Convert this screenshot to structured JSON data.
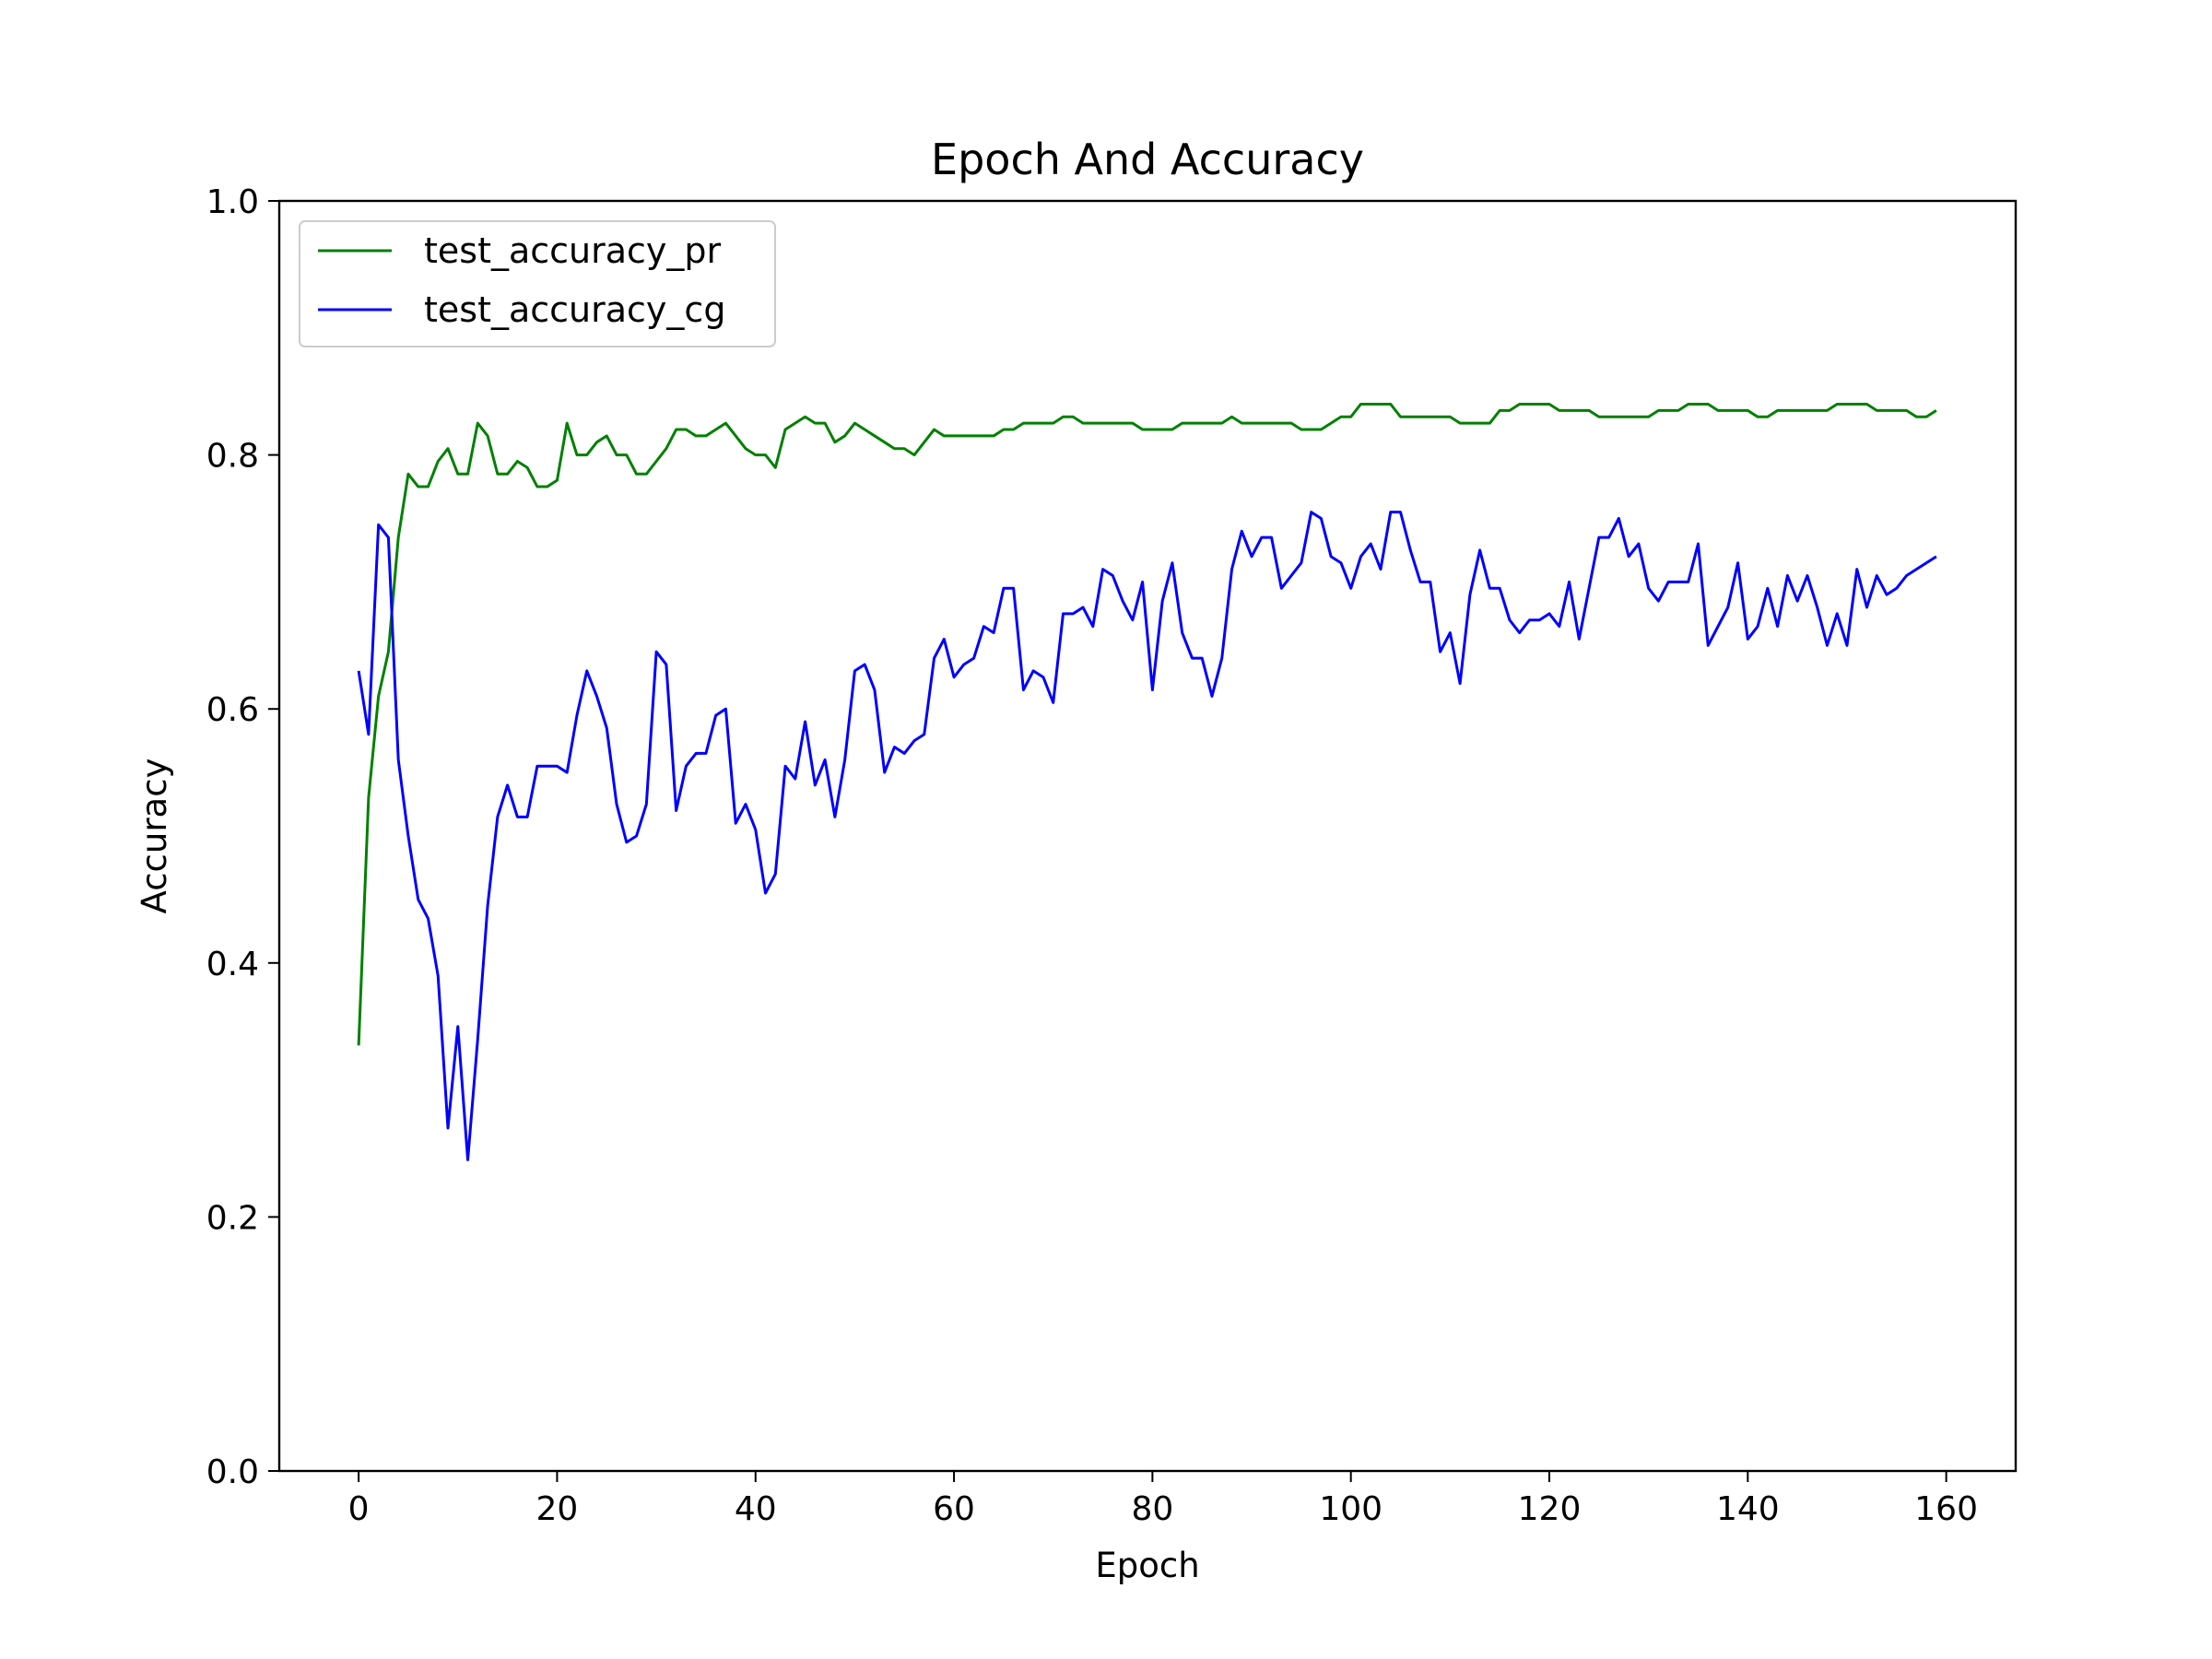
{
  "chart_data": {
    "type": "line",
    "title": "Epoch And Accuracy",
    "xlabel": "Epoch",
    "ylabel": "Accuracy",
    "xlim": [
      -8,
      167
    ],
    "ylim": [
      0.0,
      1.0
    ],
    "xticks": [
      0,
      20,
      40,
      60,
      80,
      100,
      120,
      140,
      160
    ],
    "yticks": [
      0.0,
      0.2,
      0.4,
      0.6,
      0.8,
      1.0
    ],
    "xtick_labels": [
      "0",
      "20",
      "40",
      "60",
      "80",
      "100",
      "120",
      "140",
      "160"
    ],
    "ytick_labels": [
      "0.0",
      "0.2",
      "0.4",
      "0.6",
      "0.8",
      "1.0"
    ],
    "grid": false,
    "legend_position": "top-left",
    "series": [
      {
        "name": "test_accuracy_pr",
        "color": "#008000",
        "y": [
          0.335,
          0.53,
          0.61,
          0.645,
          0.735,
          0.785,
          0.775,
          0.775,
          0.795,
          0.805,
          0.785,
          0.785,
          0.825,
          0.815,
          0.785,
          0.785,
          0.795,
          0.79,
          0.775,
          0.775,
          0.78,
          0.825,
          0.8,
          0.8,
          0.81,
          0.815,
          0.8,
          0.8,
          0.785,
          0.785,
          0.795,
          0.805,
          0.82,
          0.82,
          0.815,
          0.815,
          0.82,
          0.825,
          0.815,
          0.805,
          0.8,
          0.8,
          0.79,
          0.82,
          0.825,
          0.83,
          0.825,
          0.825,
          0.81,
          0.815,
          0.825,
          0.82,
          0.815,
          0.81,
          0.805,
          0.805,
          0.8,
          0.81,
          0.82,
          0.815,
          0.815,
          0.815,
          0.815,
          0.815,
          0.815,
          0.82,
          0.82,
          0.825,
          0.825,
          0.825,
          0.825,
          0.83,
          0.83,
          0.825,
          0.825,
          0.825,
          0.825,
          0.825,
          0.825,
          0.82,
          0.82,
          0.82,
          0.82,
          0.825,
          0.825,
          0.825,
          0.825,
          0.825,
          0.83,
          0.825,
          0.825,
          0.825,
          0.825,
          0.825,
          0.825,
          0.82,
          0.82,
          0.82,
          0.825,
          0.83,
          0.83,
          0.84,
          0.84,
          0.84,
          0.84,
          0.83,
          0.83,
          0.83,
          0.83,
          0.83,
          0.83,
          0.825,
          0.825,
          0.825,
          0.825,
          0.835,
          0.835,
          0.84,
          0.84,
          0.84,
          0.84,
          0.835,
          0.835,
          0.835,
          0.835,
          0.83,
          0.83,
          0.83,
          0.83,
          0.83,
          0.83,
          0.835,
          0.835,
          0.835,
          0.84,
          0.84,
          0.84,
          0.835,
          0.835,
          0.835,
          0.835,
          0.83,
          0.83,
          0.835,
          0.835,
          0.835,
          0.835,
          0.835,
          0.835,
          0.84,
          0.84,
          0.84,
          0.84,
          0.835,
          0.835,
          0.835,
          0.835,
          0.83,
          0.83,
          0.835
        ]
      },
      {
        "name": "test_accuracy_cg",
        "color": "#0000ff",
        "y": [
          0.63,
          0.58,
          0.745,
          0.735,
          0.56,
          0.5,
          0.45,
          0.435,
          0.39,
          0.27,
          0.35,
          0.245,
          0.34,
          0.445,
          0.515,
          0.54,
          0.515,
          0.515,
          0.555,
          0.555,
          0.555,
          0.55,
          0.595,
          0.63,
          0.61,
          0.585,
          0.525,
          0.495,
          0.5,
          0.525,
          0.645,
          0.635,
          0.52,
          0.555,
          0.565,
          0.565,
          0.595,
          0.6,
          0.51,
          0.525,
          0.505,
          0.455,
          0.47,
          0.555,
          0.545,
          0.59,
          0.54,
          0.56,
          0.515,
          0.56,
          0.63,
          0.635,
          0.615,
          0.55,
          0.57,
          0.565,
          0.575,
          0.58,
          0.64,
          0.655,
          0.625,
          0.635,
          0.64,
          0.665,
          0.66,
          0.695,
          0.695,
          0.615,
          0.63,
          0.625,
          0.605,
          0.675,
          0.675,
          0.68,
          0.665,
          0.71,
          0.705,
          0.685,
          0.67,
          0.7,
          0.615,
          0.685,
          0.715,
          0.66,
          0.64,
          0.64,
          0.61,
          0.64,
          0.71,
          0.74,
          0.72,
          0.735,
          0.735,
          0.695,
          0.705,
          0.715,
          0.755,
          0.75,
          0.72,
          0.715,
          0.695,
          0.72,
          0.73,
          0.71,
          0.755,
          0.755,
          0.725,
          0.7,
          0.7,
          0.645,
          0.66,
          0.62,
          0.69,
          0.725,
          0.695,
          0.695,
          0.67,
          0.66,
          0.67,
          0.67,
          0.675,
          0.665,
          0.7,
          0.655,
          0.695,
          0.735,
          0.735,
          0.75,
          0.72,
          0.73,
          0.695,
          0.685,
          0.7,
          0.7,
          0.7,
          0.73,
          0.65,
          0.665,
          0.68,
          0.715,
          0.655,
          0.665,
          0.695,
          0.665,
          0.705,
          0.685,
          0.705,
          0.68,
          0.65,
          0.675,
          0.65,
          0.71,
          0.68,
          0.705,
          0.69,
          0.695,
          0.705,
          0.71,
          0.715,
          0.72
        ]
      }
    ]
  }
}
